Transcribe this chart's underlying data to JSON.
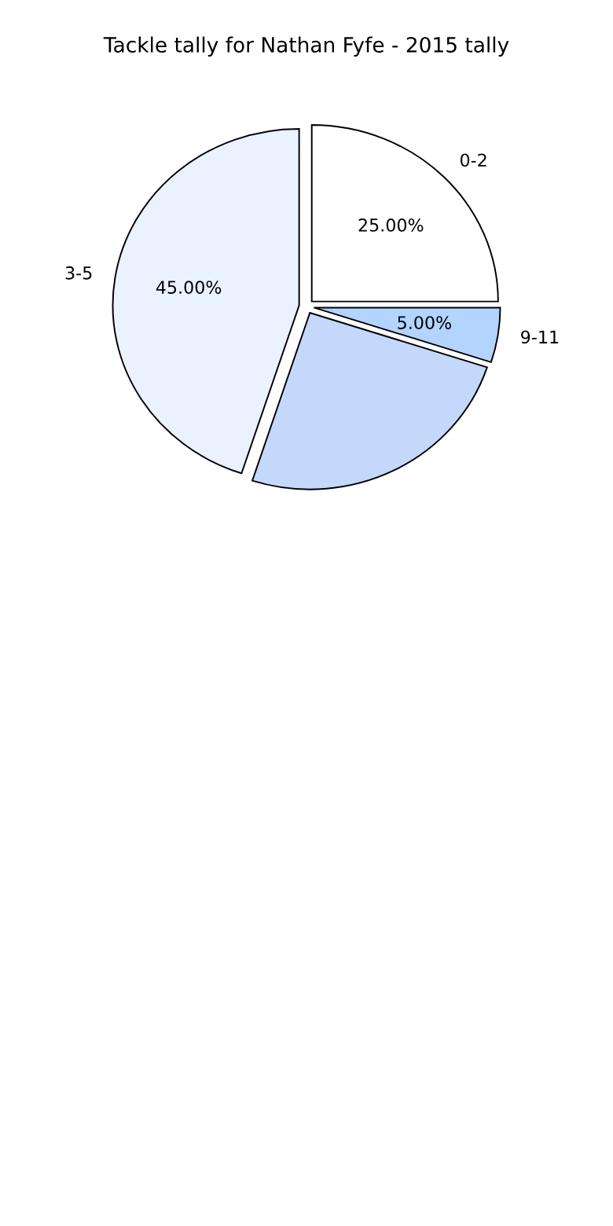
{
  "chart_data": {
    "type": "pie",
    "title": "Tackle tally for Nathan Fyfe - 2015 tally",
    "categories": [
      "0-2",
      "9-11",
      null,
      "3-5"
    ],
    "values": [
      25,
      5,
      25,
      45
    ],
    "colors": [
      "#ffffff",
      "#b3d4ff",
      "#c4d8fc",
      "#eaf1ff"
    ],
    "value_labels": [
      "25.00%",
      "5.00%",
      null,
      "45.00%"
    ]
  }
}
